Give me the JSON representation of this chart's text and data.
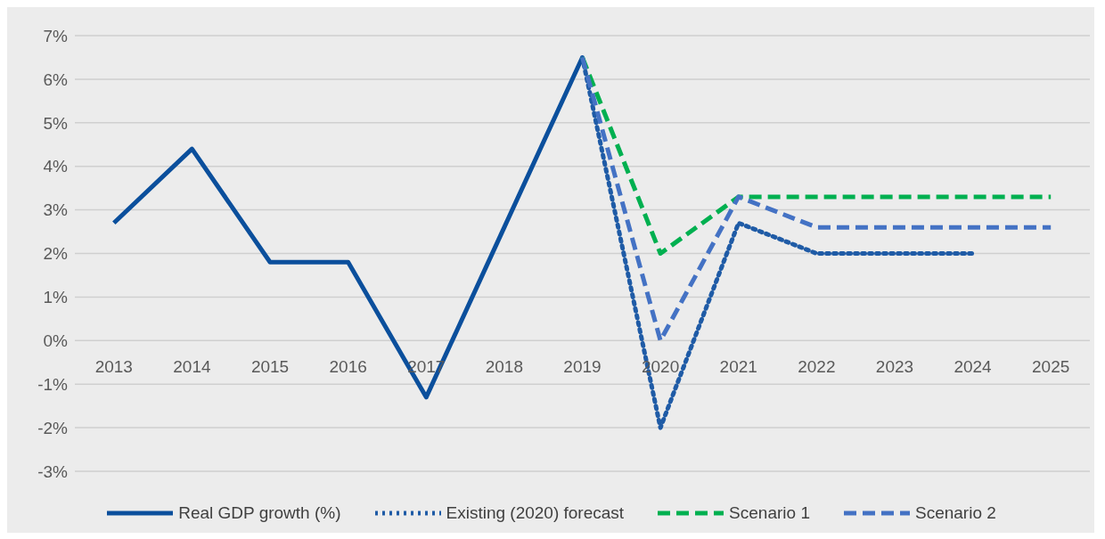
{
  "chart_data": {
    "type": "line",
    "categories": [
      "2013",
      "2014",
      "2015",
      "2016",
      "2017",
      "2018",
      "2019",
      "2020",
      "2021",
      "2022",
      "2023",
      "2024",
      "2025"
    ],
    "series": [
      {
        "name": "Real GDP growth (%)",
        "color": "#0b4f9c",
        "line_style": "solid",
        "values": [
          2.7,
          4.4,
          1.8,
          1.8,
          -1.3,
          2.6,
          6.5,
          null,
          null,
          null,
          null,
          null,
          null
        ]
      },
      {
        "name": "Existing (2020) forecast",
        "color": "#1f5ba6",
        "line_style": "dotted",
        "values": [
          null,
          null,
          null,
          null,
          null,
          null,
          6.5,
          -2.0,
          2.7,
          2.0,
          2.0,
          2.0,
          null
        ]
      },
      {
        "name": "Scenario 1",
        "color": "#00b050",
        "line_style": "dashed",
        "values": [
          null,
          null,
          null,
          null,
          null,
          null,
          6.5,
          2.0,
          3.3,
          3.3,
          3.3,
          3.3,
          3.3
        ]
      },
      {
        "name": "Scenario 2",
        "color": "#4472c4",
        "line_style": "dashed",
        "values": [
          null,
          null,
          null,
          null,
          null,
          null,
          6.5,
          0.0,
          3.3,
          2.6,
          2.6,
          2.6,
          2.6
        ]
      }
    ],
    "ylim": [
      -3,
      7
    ],
    "yticks": [
      {
        "value": -3,
        "label": "-3%"
      },
      {
        "value": -2,
        "label": "-2%"
      },
      {
        "value": -1,
        "label": "-1%"
      },
      {
        "value": 0,
        "label": "0%"
      },
      {
        "value": 1,
        "label": "1%"
      },
      {
        "value": 2,
        "label": "2%"
      },
      {
        "value": 3,
        "label": "3%"
      },
      {
        "value": 4,
        "label": "4%"
      },
      {
        "value": 5,
        "label": "5%"
      },
      {
        "value": 6,
        "label": "6%"
      },
      {
        "value": 7,
        "label": "7%"
      }
    ],
    "grid": "y",
    "legend": "bottom",
    "marker": "none"
  }
}
